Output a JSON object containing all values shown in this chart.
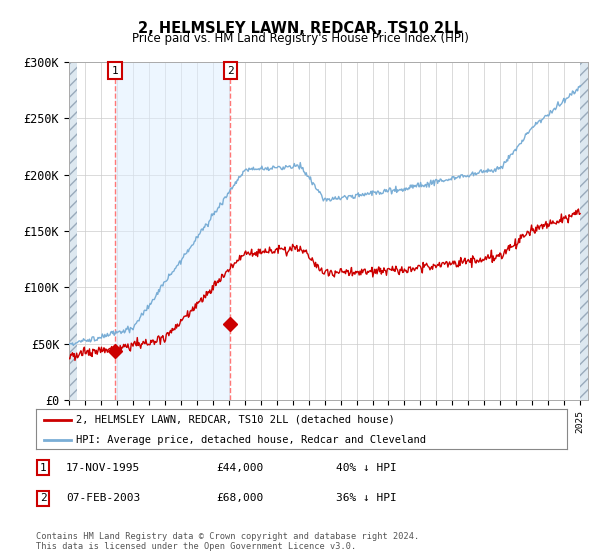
{
  "title": "2, HELMSLEY LAWN, REDCAR, TS10 2LL",
  "subtitle": "Price paid vs. HM Land Registry's House Price Index (HPI)",
  "ylim": [
    0,
    300000
  ],
  "yticks": [
    0,
    50000,
    100000,
    150000,
    200000,
    250000,
    300000
  ],
  "ytick_labels": [
    "£0",
    "£50K",
    "£100K",
    "£150K",
    "£200K",
    "£250K",
    "£300K"
  ],
  "sale1_date": 1995.88,
  "sale1_price": 44000,
  "sale2_date": 2003.1,
  "sale2_price": 68000,
  "hpi_color": "#7aaed6",
  "price_color": "#cc0000",
  "marker_color": "#cc0000",
  "legend1": "2, HELMSLEY LAWN, REDCAR, TS10 2LL (detached house)",
  "legend2": "HPI: Average price, detached house, Redcar and Cleveland",
  "footer": "Contains HM Land Registry data © Crown copyright and database right 2024.\nThis data is licensed under the Open Government Licence v3.0.",
  "table": [
    {
      "num": "1",
      "date": "17-NOV-1995",
      "price": "£44,000",
      "info": "40% ↓ HPI"
    },
    {
      "num": "2",
      "date": "07-FEB-2003",
      "price": "£68,000",
      "info": "36% ↓ HPI"
    }
  ]
}
